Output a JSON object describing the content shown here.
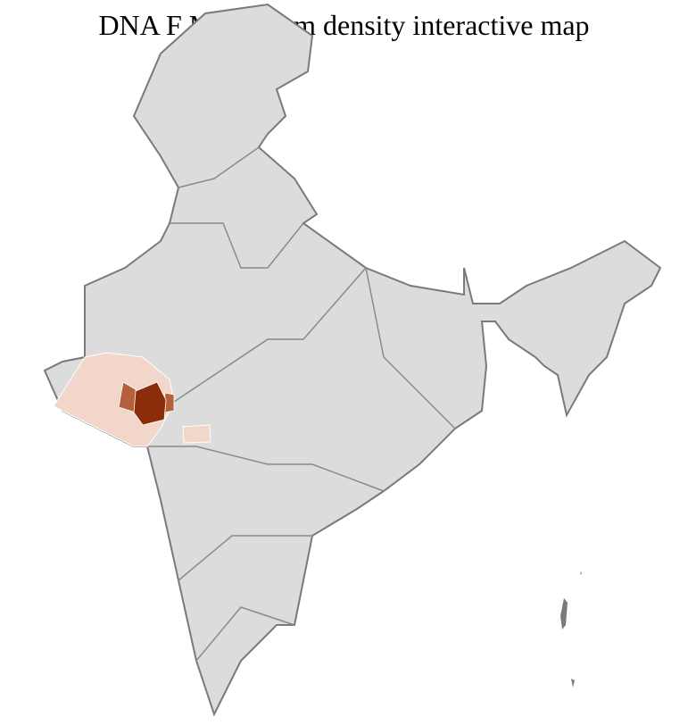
{
  "title": "DNA F Molesalam density interactive map",
  "colors": {
    "base": "#dcdcdc",
    "border": "#7a7a7a",
    "district_border": "#ffffff",
    "low": "#f1d6c9",
    "medium": "#b5603a",
    "high": "#8b2d0a"
  },
  "highlighted_regions": [
    {
      "region": "Gujarat",
      "level": "low"
    },
    {
      "region": "Central Gujarat",
      "level": "medium"
    },
    {
      "region": "Central Gujarat core",
      "level": "high"
    },
    {
      "region": "North Maharashtra",
      "level": "low"
    }
  ]
}
